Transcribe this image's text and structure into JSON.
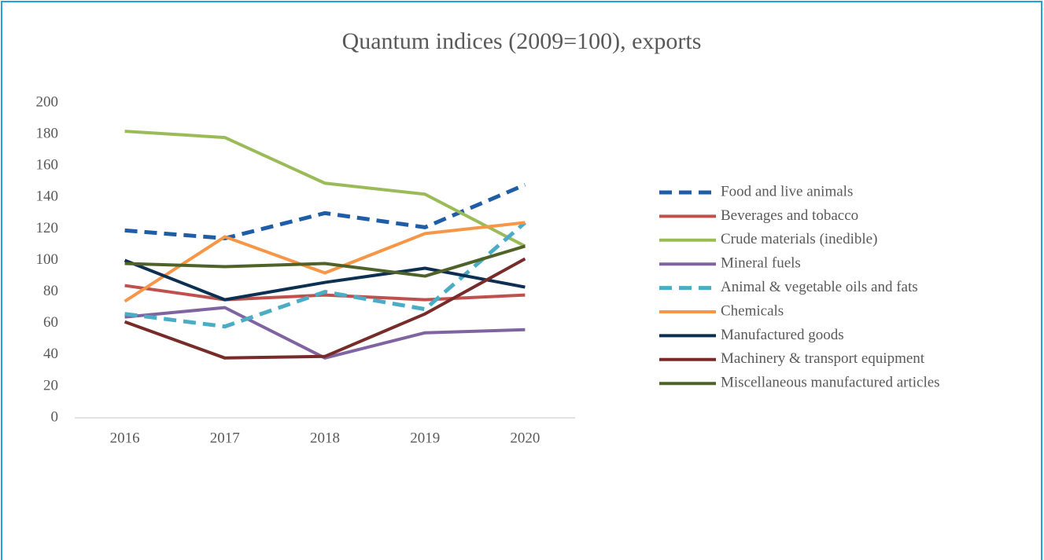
{
  "chart_data": {
    "type": "line",
    "title": "Quantum indices (2009=100), exports",
    "categories": [
      "2016",
      "2017",
      "2018",
      "2019",
      "2020"
    ],
    "series": [
      {
        "name": "Food and live animals",
        "color": "#1f5ea6",
        "dashed": true,
        "values": [
          119,
          114,
          130,
          121,
          148
        ]
      },
      {
        "name": "Beverages and tobacco",
        "color": "#c0504d",
        "dashed": false,
        "values": [
          84,
          75,
          78,
          75,
          78
        ]
      },
      {
        "name": "Crude materials (inedible)",
        "color": "#9bbb59",
        "dashed": false,
        "values": [
          182,
          178,
          149,
          142,
          109
        ]
      },
      {
        "name": "Mineral fuels",
        "color": "#8064a2",
        "dashed": false,
        "values": [
          64,
          70,
          38,
          54,
          56
        ]
      },
      {
        "name": "Animal & vegetable oils and fats",
        "color": "#4bacc6",
        "dashed": true,
        "values": [
          66,
          58,
          80,
          69,
          124
        ]
      },
      {
        "name": "Chemicals",
        "color": "#f79646",
        "dashed": false,
        "values": [
          74,
          115,
          92,
          117,
          124
        ]
      },
      {
        "name": "Manufactured goods",
        "color": "#0d2f52",
        "dashed": false,
        "values": [
          100,
          75,
          86,
          95,
          83
        ]
      },
      {
        "name": "Machinery & transport equipment",
        "color": "#772c2a",
        "dashed": false,
        "values": [
          61,
          38,
          39,
          66,
          101
        ]
      },
      {
        "name": "Miscellaneous manufactured articles",
        "color": "#4f6228",
        "dashed": false,
        "values": [
          98,
          96,
          98,
          90,
          109
        ]
      }
    ],
    "ylim": [
      0,
      200
    ],
    "yticks": [
      0,
      20,
      40,
      60,
      80,
      100,
      120,
      140,
      160,
      180,
      200
    ],
    "grid": false,
    "legend": "right"
  }
}
